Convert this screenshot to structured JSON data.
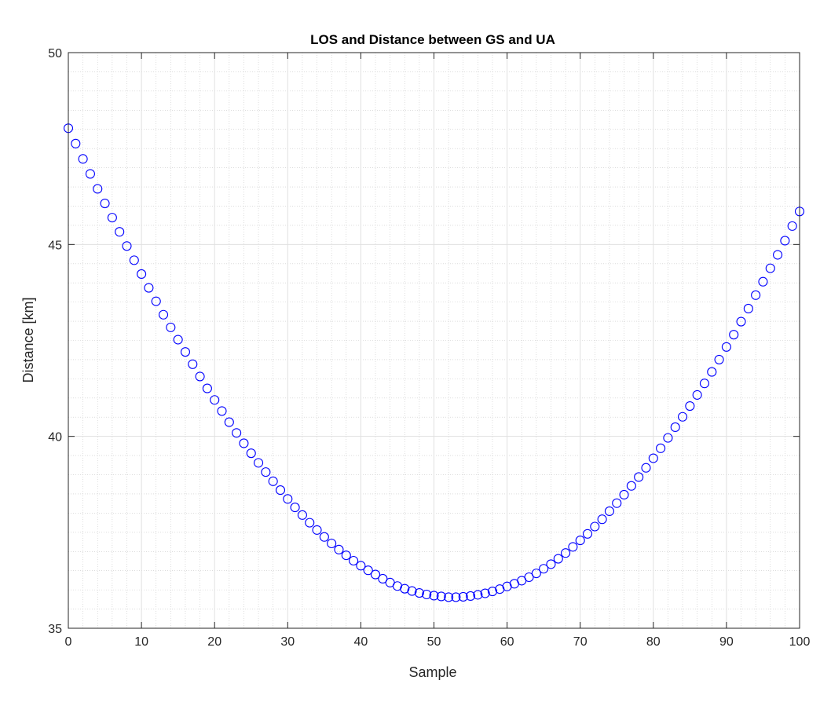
{
  "chart_data": {
    "type": "scatter",
    "title": "LOS and Distance between GS and UA",
    "xlabel": "Sample",
    "ylabel": "Distance [km]",
    "xlim": [
      0,
      100
    ],
    "ylim": [
      35,
      50
    ],
    "xticks": [
      "0",
      "10",
      "20",
      "30",
      "40",
      "50",
      "60",
      "70",
      "80",
      "90",
      "100"
    ],
    "yticks": [
      "35",
      "40",
      "45",
      "50"
    ],
    "grid": true,
    "minor_grid": true,
    "marker": "circle",
    "colors": {
      "marker": "#0000ff",
      "major_grid": "#e0e0e0",
      "minor_grid": "#c8c8c8",
      "axis": "#262626"
    },
    "series": [
      {
        "x": [
          0,
          1,
          2,
          3,
          4,
          5,
          6,
          7,
          8,
          9,
          10,
          11,
          12,
          13,
          14,
          15,
          16,
          17,
          18,
          19,
          20,
          21,
          22,
          23,
          24,
          25,
          26,
          27,
          28,
          29,
          30,
          31,
          32,
          33,
          34,
          35,
          36,
          37,
          38,
          39,
          40,
          41,
          42,
          43,
          44,
          45,
          46,
          47,
          48,
          49,
          50,
          51,
          52,
          53,
          54,
          55,
          56,
          57,
          58,
          59,
          60,
          61,
          62,
          63,
          64,
          65,
          66,
          67,
          68,
          69,
          70,
          71,
          72,
          73,
          74,
          75,
          76,
          77,
          78,
          79,
          80,
          81,
          82,
          83,
          84,
          85,
          86,
          87,
          88,
          89,
          90,
          91,
          92,
          93,
          94,
          95,
          96,
          97,
          98,
          99,
          100
        ],
        "y": [
          48.03,
          47.63,
          47.23,
          46.84,
          46.45,
          46.07,
          45.7,
          45.33,
          44.96,
          44.59,
          44.23,
          43.87,
          43.52,
          43.17,
          42.84,
          42.52,
          42.2,
          41.88,
          41.56,
          41.25,
          40.95,
          40.66,
          40.37,
          40.09,
          39.82,
          39.56,
          39.31,
          39.07,
          38.83,
          38.6,
          38.37,
          38.15,
          37.95,
          37.75,
          37.56,
          37.38,
          37.21,
          37.05,
          36.9,
          36.76,
          36.63,
          36.51,
          36.4,
          36.29,
          36.19,
          36.1,
          36.03,
          35.97,
          35.92,
          35.88,
          35.85,
          35.83,
          35.81,
          35.81,
          35.82,
          35.84,
          35.87,
          35.91,
          35.96,
          36.02,
          36.09,
          36.16,
          36.24,
          36.33,
          36.43,
          36.55,
          36.67,
          36.81,
          36.96,
          37.12,
          37.29,
          37.46,
          37.65,
          37.84,
          38.05,
          38.26,
          38.48,
          38.71,
          38.94,
          39.18,
          39.43,
          39.69,
          39.96,
          40.24,
          40.51,
          40.79,
          41.08,
          41.38,
          41.68,
          42.0,
          42.33,
          42.65,
          42.99,
          43.33,
          43.68,
          44.03,
          44.38,
          44.73,
          45.1,
          45.48,
          45.86
        ]
      }
    ]
  }
}
